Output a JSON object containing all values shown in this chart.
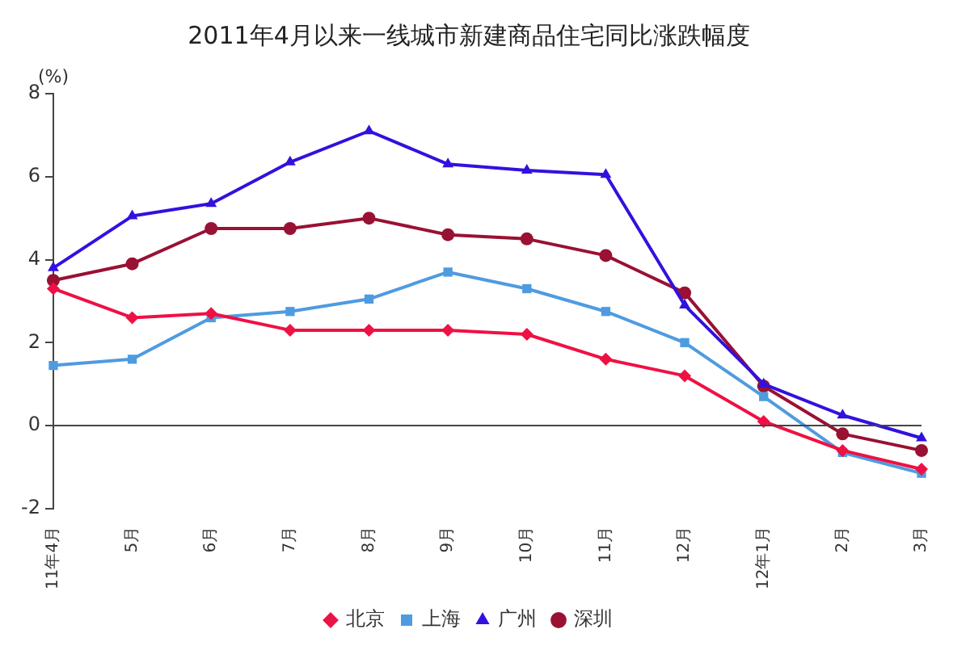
{
  "chart_data": {
    "type": "line",
    "title": "2011年4月以来一线城市新建商品住宅同比涨跌幅度",
    "ylabel": "(%)",
    "categories": [
      "11年4月",
      "5月",
      "6月",
      "7月",
      "8月",
      "9月",
      "10月",
      "11月",
      "12月",
      "12年1月",
      "2月",
      "3月"
    ],
    "series": [
      {
        "name": "北京",
        "color": "#ee1144",
        "marker": "diamond",
        "values": [
          3.3,
          2.6,
          2.7,
          2.3,
          2.3,
          2.3,
          2.2,
          1.6,
          1.2,
          0.1,
          -0.6,
          -1.05
        ]
      },
      {
        "name": "上海",
        "color": "#4f9be0",
        "marker": "square",
        "values": [
          1.45,
          1.6,
          2.6,
          2.75,
          3.05,
          3.7,
          3.3,
          2.75,
          2.0,
          0.7,
          -0.65,
          -1.15
        ]
      },
      {
        "name": "广州",
        "color": "#3311dd",
        "marker": "triangle",
        "values": [
          3.8,
          5.05,
          5.35,
          6.35,
          7.1,
          6.3,
          6.15,
          6.05,
          2.9,
          1.0,
          0.25,
          -0.3
        ]
      },
      {
        "name": "深圳",
        "color": "#991133",
        "marker": "circle",
        "values": [
          3.5,
          3.9,
          4.75,
          4.75,
          5.0,
          4.6,
          4.5,
          4.1,
          3.2,
          0.95,
          -0.2,
          -0.6
        ]
      }
    ],
    "ref_lines": [
      {
        "axis": "y",
        "value": 0,
        "color": "#444444"
      }
    ],
    "ylim": [
      -2,
      8
    ],
    "yticks": [
      -2,
      0,
      2,
      4,
      6,
      8
    ],
    "grid": false,
    "legend": "bottom"
  }
}
